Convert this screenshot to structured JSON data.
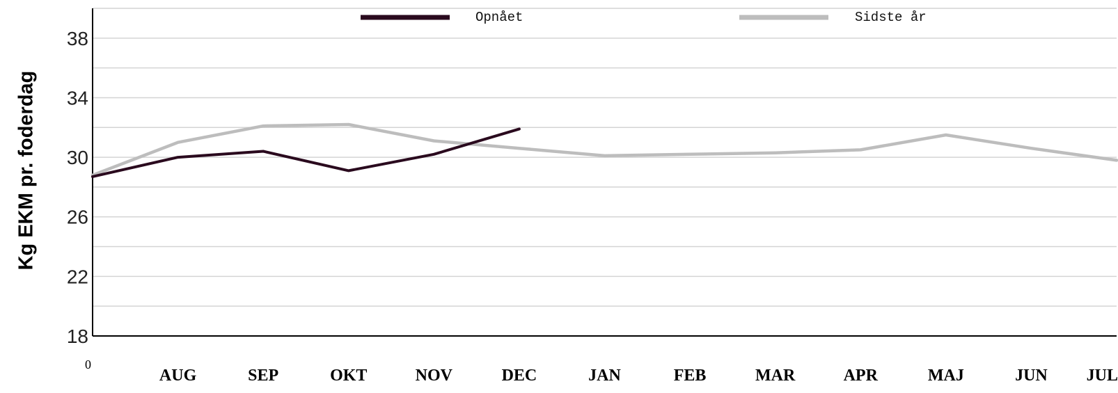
{
  "chart_data": {
    "type": "line",
    "ylabel": "Kg EKM pr. foderdag",
    "xlabel": "",
    "origin_label": "0",
    "categories": [
      "",
      "AUG",
      "SEP",
      "OKT",
      "NOV",
      "DEC",
      "JAN",
      "FEB",
      "MAR",
      "APR",
      "MAJ",
      "JUN",
      "JUL"
    ],
    "ylim": [
      18,
      40
    ],
    "yticks": [
      18,
      22,
      26,
      30,
      34,
      38
    ],
    "grid": true,
    "legend_position": "top",
    "series": [
      {
        "name": "Opnået",
        "color": "#2a0a1e",
        "values": [
          28.7,
          30.0,
          30.4,
          29.1,
          30.2,
          31.9,
          null,
          null,
          null,
          null,
          null,
          null,
          null
        ]
      },
      {
        "name": "Sidste år",
        "color": "#bdbdbd",
        "values": [
          28.8,
          31.0,
          32.1,
          32.2,
          31.1,
          30.6,
          30.1,
          30.2,
          30.3,
          30.5,
          31.5,
          30.6,
          29.8
        ]
      }
    ]
  }
}
